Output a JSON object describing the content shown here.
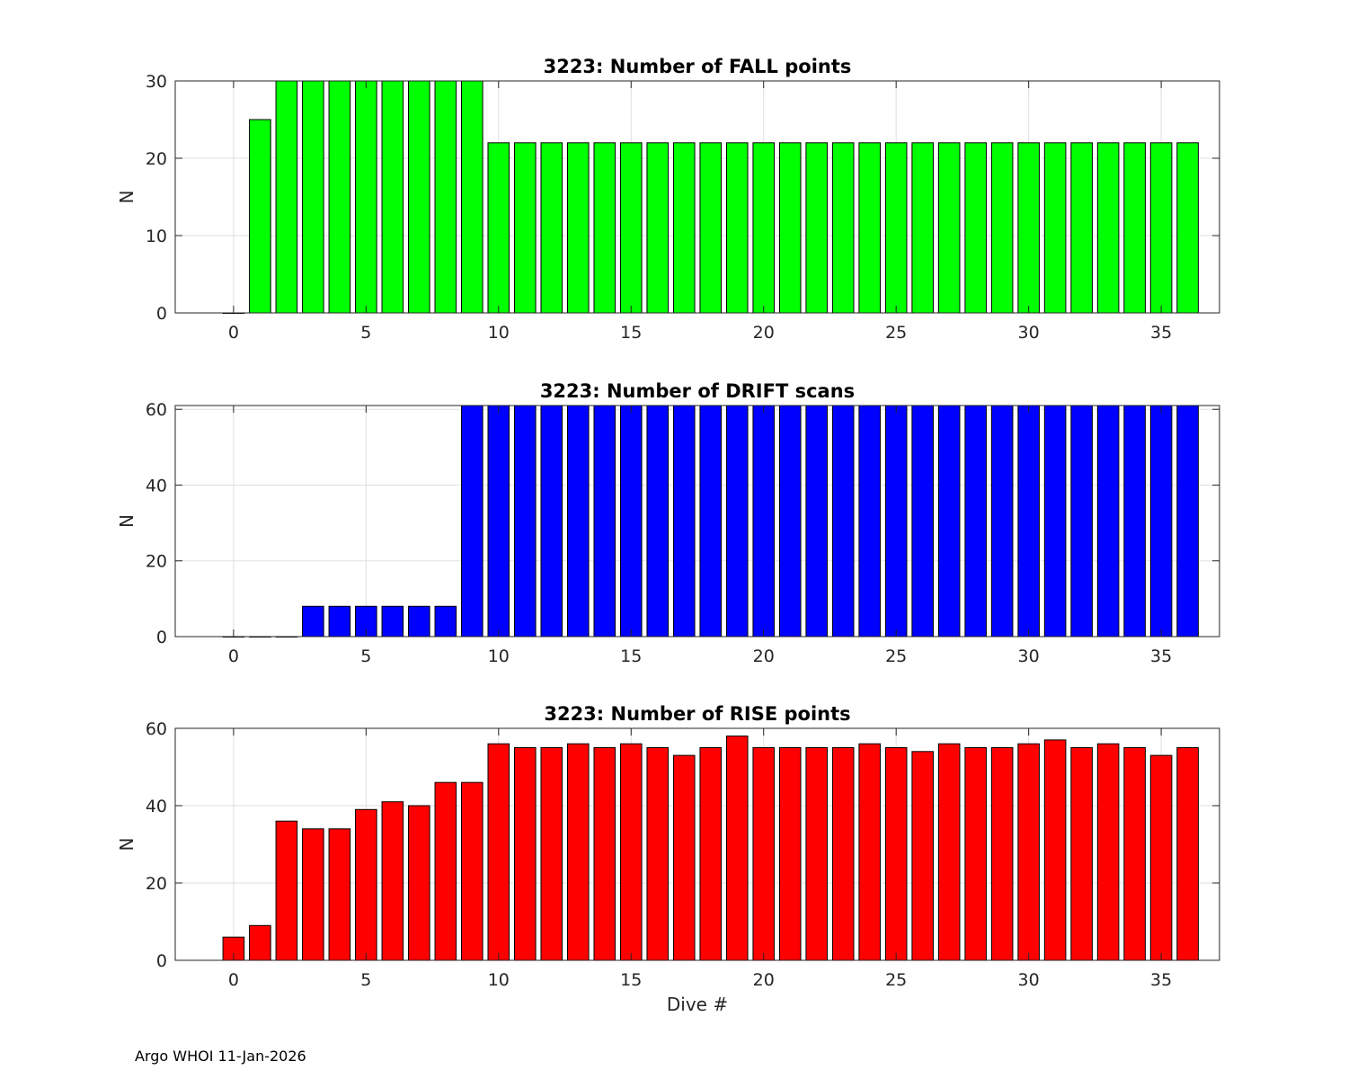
{
  "footer": "Argo WHOI 11-Jan-2026",
  "chart_data": [
    {
      "type": "bar",
      "title": "3223: Number of FALL points",
      "xlabel": "",
      "ylabel": "N",
      "color": "#00ff00",
      "x": [
        0,
        1,
        2,
        3,
        4,
        5,
        6,
        7,
        8,
        9,
        10,
        11,
        12,
        13,
        14,
        15,
        16,
        17,
        18,
        19,
        20,
        21,
        22,
        23,
        24,
        25,
        26,
        27,
        28,
        29,
        30,
        31,
        32,
        33,
        34,
        35,
        36
      ],
      "values": [
        0,
        25,
        30,
        30,
        30,
        30,
        30,
        30,
        30,
        30,
        22,
        22,
        22,
        22,
        22,
        22,
        22,
        22,
        22,
        22,
        22,
        22,
        22,
        22,
        22,
        22,
        22,
        22,
        22,
        22,
        22,
        22,
        22,
        22,
        22,
        22,
        22
      ],
      "xlim": [
        -2.2,
        37.2
      ],
      "ylim": [
        0,
        30
      ],
      "xticks": [
        "0",
        "5",
        "10",
        "15",
        "20",
        "25",
        "30",
        "35"
      ],
      "yticks": [
        "0",
        "10",
        "20",
        "30"
      ],
      "grid": true
    },
    {
      "type": "bar",
      "title": "3223: Number of DRIFT scans",
      "xlabel": "",
      "ylabel": "N",
      "color": "#0000ff",
      "x": [
        0,
        1,
        2,
        3,
        4,
        5,
        6,
        7,
        8,
        9,
        10,
        11,
        12,
        13,
        14,
        15,
        16,
        17,
        18,
        19,
        20,
        21,
        22,
        23,
        24,
        25,
        26,
        27,
        28,
        29,
        30,
        31,
        32,
        33,
        34,
        35,
        36
      ],
      "values": [
        0,
        0,
        0,
        8,
        8,
        8,
        8,
        8,
        8,
        61,
        61,
        61,
        61,
        61,
        61,
        61,
        61,
        61,
        61,
        61,
        61,
        61,
        61,
        61,
        61,
        61,
        61,
        61,
        61,
        61,
        61,
        61,
        61,
        61,
        61,
        61,
        61
      ],
      "xlim": [
        -2.2,
        37.2
      ],
      "ylim": [
        0,
        61
      ],
      "xticks": [
        "0",
        "5",
        "10",
        "15",
        "20",
        "25",
        "30",
        "35"
      ],
      "yticks": [
        "0",
        "20",
        "40",
        "60"
      ],
      "grid": true
    },
    {
      "type": "bar",
      "title": "3223: Number of RISE points",
      "xlabel": "Dive #",
      "ylabel": "N",
      "color": "#ff0000",
      "x": [
        0,
        1,
        2,
        3,
        4,
        5,
        6,
        7,
        8,
        9,
        10,
        11,
        12,
        13,
        14,
        15,
        16,
        17,
        18,
        19,
        20,
        21,
        22,
        23,
        24,
        25,
        26,
        27,
        28,
        29,
        30,
        31,
        32,
        33,
        34,
        35,
        36
      ],
      "values": [
        6,
        9,
        36,
        34,
        34,
        39,
        41,
        40,
        46,
        46,
        56,
        55,
        55,
        56,
        55,
        56,
        55,
        53,
        55,
        58,
        55,
        55,
        55,
        55,
        56,
        55,
        54,
        56,
        55,
        55,
        56,
        57,
        55,
        56,
        55,
        53,
        55
      ],
      "xlim": [
        -2.2,
        37.2
      ],
      "ylim": [
        0,
        60
      ],
      "xticks": [
        "0",
        "5",
        "10",
        "15",
        "20",
        "25",
        "30",
        "35"
      ],
      "yticks": [
        "0",
        "20",
        "40",
        "60"
      ],
      "grid": true
    }
  ]
}
